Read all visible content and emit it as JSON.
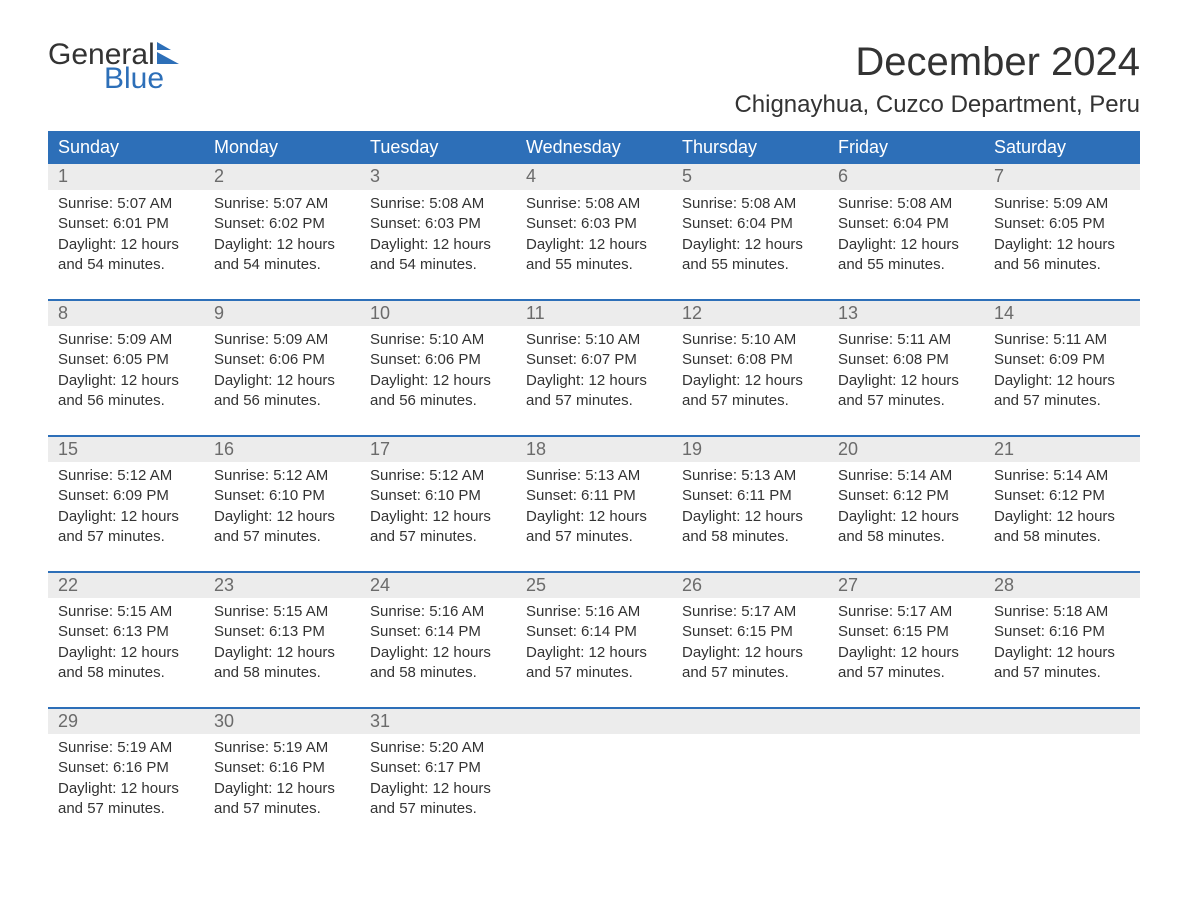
{
  "brand": {
    "word1": "General",
    "word2": "Blue",
    "accent": "#2d6fb8"
  },
  "title": "December 2024",
  "location": "Chignayhua, Cuzco Department, Peru",
  "weekdays": [
    "Sunday",
    "Monday",
    "Tuesday",
    "Wednesday",
    "Thursday",
    "Friday",
    "Saturday"
  ],
  "colors": {
    "header_bg": "#2d6fb8",
    "header_text": "#ffffff",
    "daynum_bg": "#ececec",
    "daynum_text": "#6b6b6b",
    "body_text": "#333333",
    "rule": "#2d6fb8"
  },
  "weeks": [
    [
      {
        "n": "1",
        "sr": "Sunrise: 5:07 AM",
        "ss": "Sunset: 6:01 PM",
        "d1": "Daylight: 12 hours",
        "d2": "and 54 minutes."
      },
      {
        "n": "2",
        "sr": "Sunrise: 5:07 AM",
        "ss": "Sunset: 6:02 PM",
        "d1": "Daylight: 12 hours",
        "d2": "and 54 minutes."
      },
      {
        "n": "3",
        "sr": "Sunrise: 5:08 AM",
        "ss": "Sunset: 6:03 PM",
        "d1": "Daylight: 12 hours",
        "d2": "and 54 minutes."
      },
      {
        "n": "4",
        "sr": "Sunrise: 5:08 AM",
        "ss": "Sunset: 6:03 PM",
        "d1": "Daylight: 12 hours",
        "d2": "and 55 minutes."
      },
      {
        "n": "5",
        "sr": "Sunrise: 5:08 AM",
        "ss": "Sunset: 6:04 PM",
        "d1": "Daylight: 12 hours",
        "d2": "and 55 minutes."
      },
      {
        "n": "6",
        "sr": "Sunrise: 5:08 AM",
        "ss": "Sunset: 6:04 PM",
        "d1": "Daylight: 12 hours",
        "d2": "and 55 minutes."
      },
      {
        "n": "7",
        "sr": "Sunrise: 5:09 AM",
        "ss": "Sunset: 6:05 PM",
        "d1": "Daylight: 12 hours",
        "d2": "and 56 minutes."
      }
    ],
    [
      {
        "n": "8",
        "sr": "Sunrise: 5:09 AM",
        "ss": "Sunset: 6:05 PM",
        "d1": "Daylight: 12 hours",
        "d2": "and 56 minutes."
      },
      {
        "n": "9",
        "sr": "Sunrise: 5:09 AM",
        "ss": "Sunset: 6:06 PM",
        "d1": "Daylight: 12 hours",
        "d2": "and 56 minutes."
      },
      {
        "n": "10",
        "sr": "Sunrise: 5:10 AM",
        "ss": "Sunset: 6:06 PM",
        "d1": "Daylight: 12 hours",
        "d2": "and 56 minutes."
      },
      {
        "n": "11",
        "sr": "Sunrise: 5:10 AM",
        "ss": "Sunset: 6:07 PM",
        "d1": "Daylight: 12 hours",
        "d2": "and 57 minutes."
      },
      {
        "n": "12",
        "sr": "Sunrise: 5:10 AM",
        "ss": "Sunset: 6:08 PM",
        "d1": "Daylight: 12 hours",
        "d2": "and 57 minutes."
      },
      {
        "n": "13",
        "sr": "Sunrise: 5:11 AM",
        "ss": "Sunset: 6:08 PM",
        "d1": "Daylight: 12 hours",
        "d2": "and 57 minutes."
      },
      {
        "n": "14",
        "sr": "Sunrise: 5:11 AM",
        "ss": "Sunset: 6:09 PM",
        "d1": "Daylight: 12 hours",
        "d2": "and 57 minutes."
      }
    ],
    [
      {
        "n": "15",
        "sr": "Sunrise: 5:12 AM",
        "ss": "Sunset: 6:09 PM",
        "d1": "Daylight: 12 hours",
        "d2": "and 57 minutes."
      },
      {
        "n": "16",
        "sr": "Sunrise: 5:12 AM",
        "ss": "Sunset: 6:10 PM",
        "d1": "Daylight: 12 hours",
        "d2": "and 57 minutes."
      },
      {
        "n": "17",
        "sr": "Sunrise: 5:12 AM",
        "ss": "Sunset: 6:10 PM",
        "d1": "Daylight: 12 hours",
        "d2": "and 57 minutes."
      },
      {
        "n": "18",
        "sr": "Sunrise: 5:13 AM",
        "ss": "Sunset: 6:11 PM",
        "d1": "Daylight: 12 hours",
        "d2": "and 57 minutes."
      },
      {
        "n": "19",
        "sr": "Sunrise: 5:13 AM",
        "ss": "Sunset: 6:11 PM",
        "d1": "Daylight: 12 hours",
        "d2": "and 58 minutes."
      },
      {
        "n": "20",
        "sr": "Sunrise: 5:14 AM",
        "ss": "Sunset: 6:12 PM",
        "d1": "Daylight: 12 hours",
        "d2": "and 58 minutes."
      },
      {
        "n": "21",
        "sr": "Sunrise: 5:14 AM",
        "ss": "Sunset: 6:12 PM",
        "d1": "Daylight: 12 hours",
        "d2": "and 58 minutes."
      }
    ],
    [
      {
        "n": "22",
        "sr": "Sunrise: 5:15 AM",
        "ss": "Sunset: 6:13 PM",
        "d1": "Daylight: 12 hours",
        "d2": "and 58 minutes."
      },
      {
        "n": "23",
        "sr": "Sunrise: 5:15 AM",
        "ss": "Sunset: 6:13 PM",
        "d1": "Daylight: 12 hours",
        "d2": "and 58 minutes."
      },
      {
        "n": "24",
        "sr": "Sunrise: 5:16 AM",
        "ss": "Sunset: 6:14 PM",
        "d1": "Daylight: 12 hours",
        "d2": "and 58 minutes."
      },
      {
        "n": "25",
        "sr": "Sunrise: 5:16 AM",
        "ss": "Sunset: 6:14 PM",
        "d1": "Daylight: 12 hours",
        "d2": "and 57 minutes."
      },
      {
        "n": "26",
        "sr": "Sunrise: 5:17 AM",
        "ss": "Sunset: 6:15 PM",
        "d1": "Daylight: 12 hours",
        "d2": "and 57 minutes."
      },
      {
        "n": "27",
        "sr": "Sunrise: 5:17 AM",
        "ss": "Sunset: 6:15 PM",
        "d1": "Daylight: 12 hours",
        "d2": "and 57 minutes."
      },
      {
        "n": "28",
        "sr": "Sunrise: 5:18 AM",
        "ss": "Sunset: 6:16 PM",
        "d1": "Daylight: 12 hours",
        "d2": "and 57 minutes."
      }
    ],
    [
      {
        "n": "29",
        "sr": "Sunrise: 5:19 AM",
        "ss": "Sunset: 6:16 PM",
        "d1": "Daylight: 12 hours",
        "d2": "and 57 minutes."
      },
      {
        "n": "30",
        "sr": "Sunrise: 5:19 AM",
        "ss": "Sunset: 6:16 PM",
        "d1": "Daylight: 12 hours",
        "d2": "and 57 minutes."
      },
      {
        "n": "31",
        "sr": "Sunrise: 5:20 AM",
        "ss": "Sunset: 6:17 PM",
        "d1": "Daylight: 12 hours",
        "d2": "and 57 minutes."
      },
      null,
      null,
      null,
      null
    ]
  ]
}
